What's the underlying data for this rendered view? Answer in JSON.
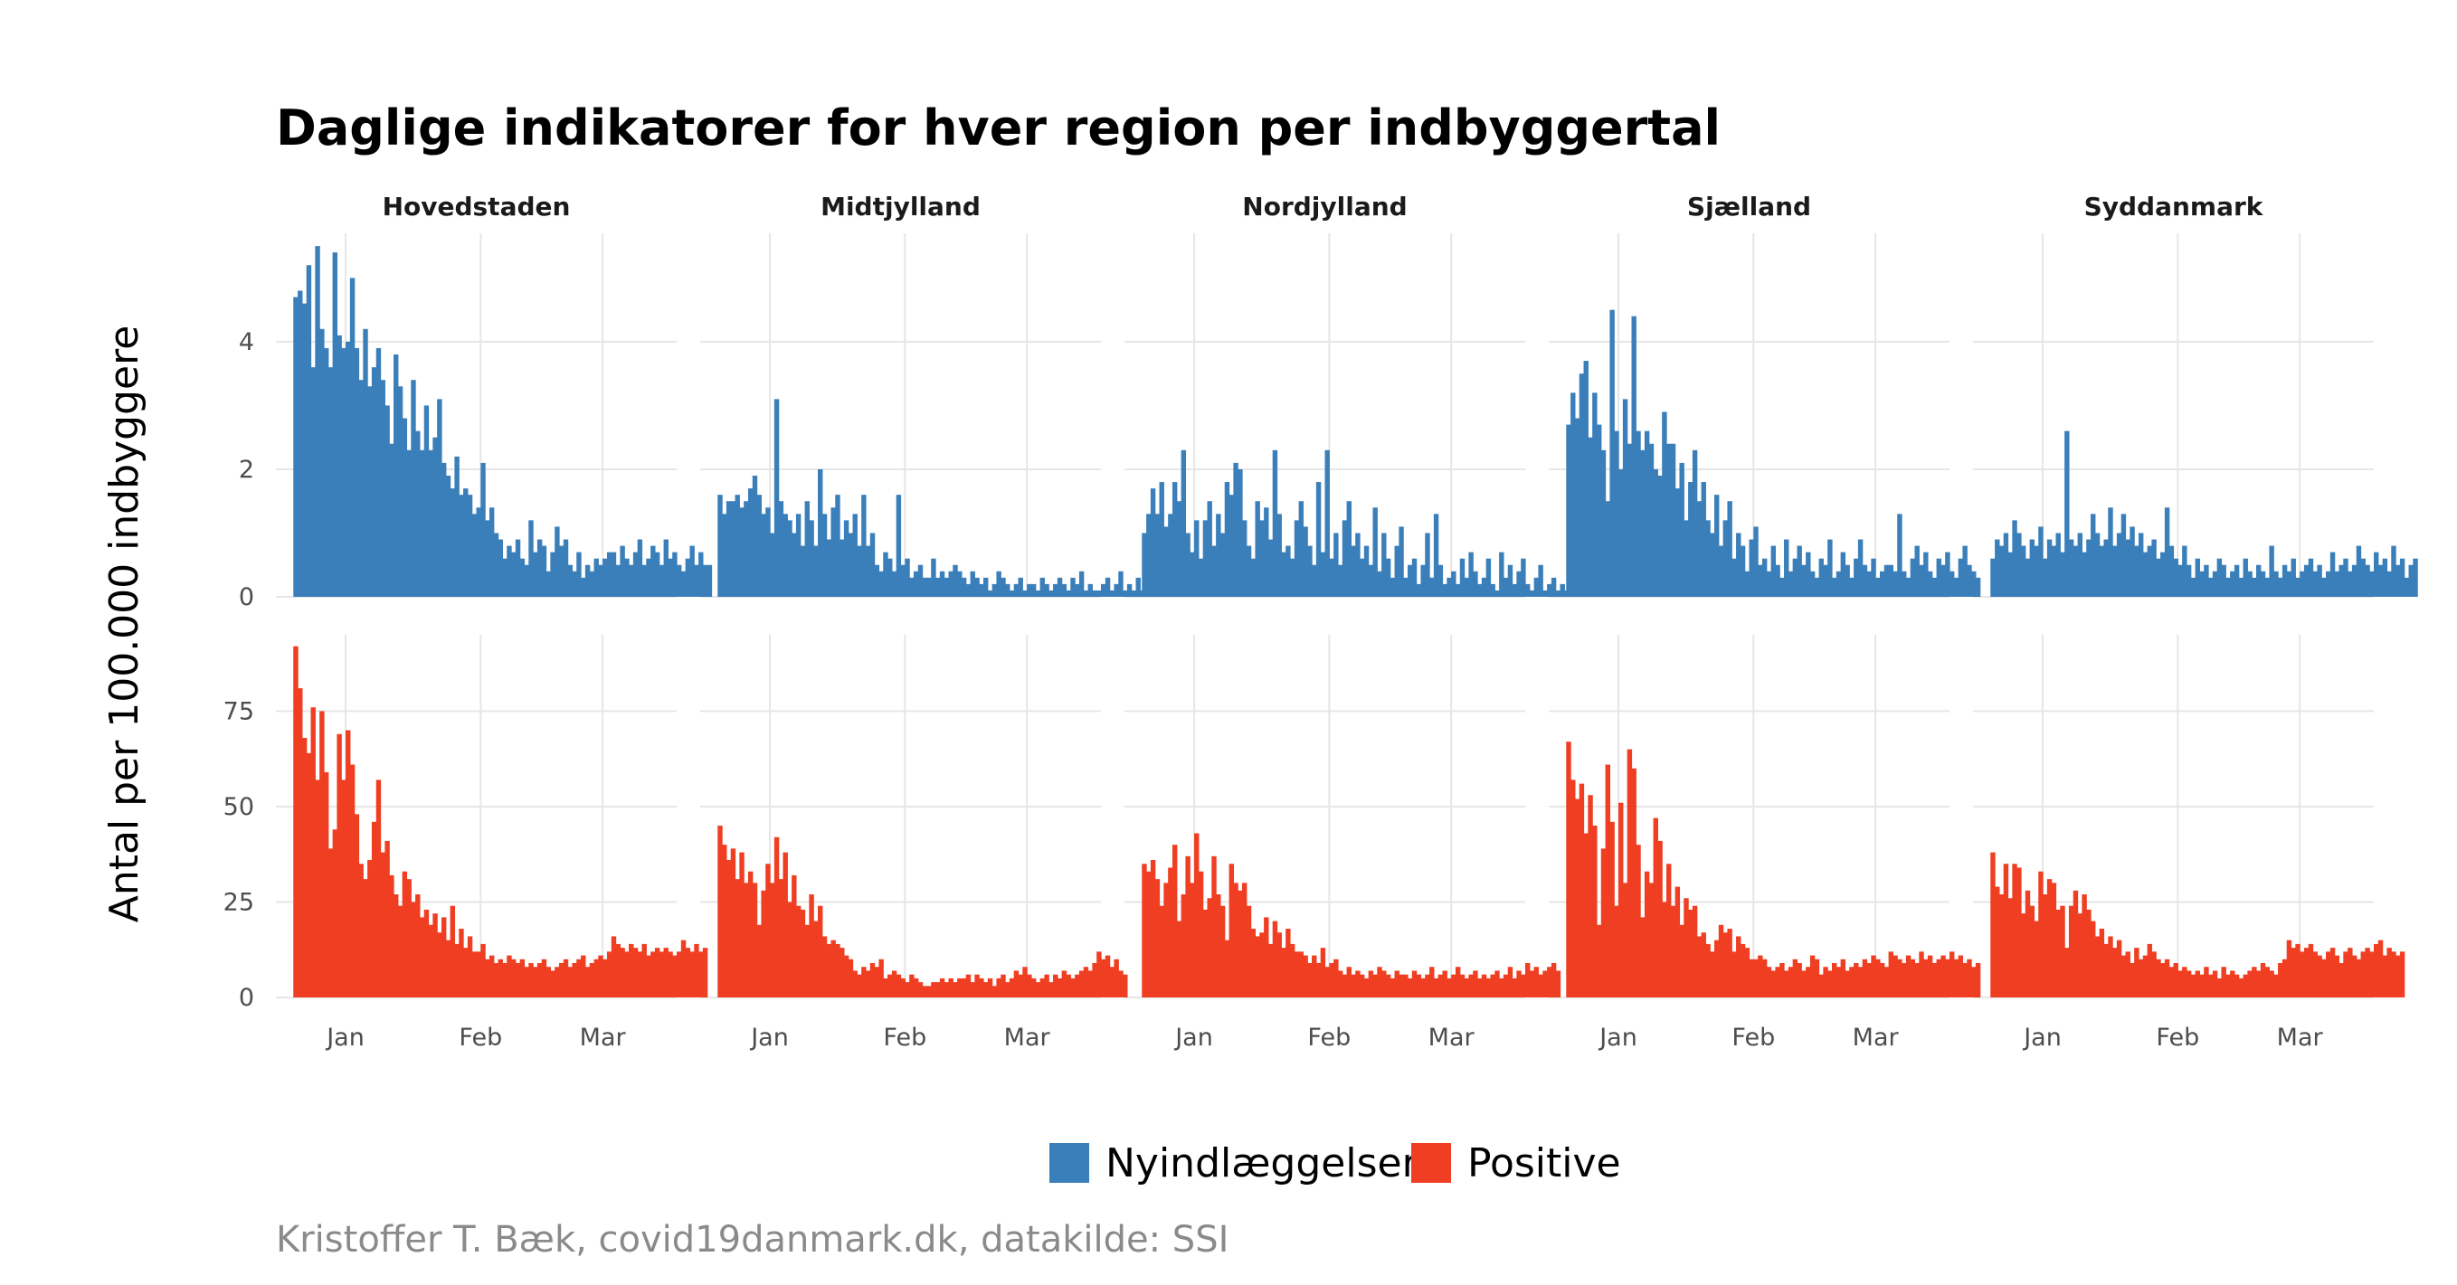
{
  "chart_data": {
    "type": "bar",
    "title": "Daglige indikatorer for hver region per indbyggertal",
    "ylabel": "Antal per 100.000 indbyggere",
    "caption": "Kristoffer T. Bæk, covid19danmark.dk, datakilde: SSI",
    "x_ticks": [
      "Jan",
      "Feb",
      "Mar"
    ],
    "x_range_dates": [
      "2020-12-16",
      "2021-03-18"
    ],
    "x_tick_dates": [
      "2021-01-01",
      "2021-02-01",
      "2021-03-01"
    ],
    "grid": true,
    "legend_position": "bottom",
    "panels": [
      "Hovedstaden",
      "Midtjylland",
      "Nordjylland",
      "Sjælland",
      "Syddanmark"
    ],
    "series": [
      {
        "name": "Nyindlæggelser",
        "color": "#3a7fba",
        "ylim": [
          0,
          5.7
        ],
        "y_ticks": [
          0,
          2,
          4
        ],
        "start_date": "2020-12-20",
        "values_by_region": {
          "Hovedstaden": [
            4.7,
            4.8,
            4.6,
            5.2,
            3.6,
            5.5,
            4.2,
            3.9,
            3.6,
            5.4,
            4.1,
            3.9,
            4.0,
            5.0,
            3.9,
            3.4,
            4.2,
            3.3,
            3.6,
            3.9,
            3.4,
            3.0,
            2.4,
            3.8,
            3.3,
            2.8,
            2.3,
            3.4,
            2.6,
            2.3,
            3.0,
            2.3,
            2.5,
            3.1,
            2.1,
            1.9,
            1.7,
            2.2,
            1.6,
            1.7,
            1.6,
            1.3,
            1.4,
            2.1,
            1.2,
            1.4,
            1.0,
            0.9,
            0.6,
            0.8,
            0.7,
            0.9,
            0.6,
            0.5,
            1.2,
            0.7,
            0.9,
            0.8,
            0.4,
            0.7,
            1.1,
            0.8,
            0.9,
            0.5,
            0.4,
            0.7,
            0.3,
            0.5,
            0.4,
            0.6,
            0.5,
            0.6,
            0.7,
            0.7,
            0.5,
            0.8,
            0.6,
            0.5,
            0.7,
            0.9,
            0.5,
            0.6,
            0.8,
            0.7,
            0.5,
            0.9,
            0.6,
            0.7,
            0.5,
            0.4,
            0.6,
            0.8,
            0.5,
            0.7,
            0.5,
            0.5
          ],
          "Midtjylland": [
            1.6,
            1.3,
            1.5,
            1.5,
            1.6,
            1.4,
            1.5,
            1.7,
            1.9,
            1.6,
            1.3,
            1.4,
            1.0,
            3.1,
            1.5,
            1.3,
            1.2,
            1.0,
            1.3,
            0.8,
            1.5,
            1.2,
            0.8,
            2.0,
            1.3,
            0.9,
            1.4,
            1.6,
            0.9,
            1.2,
            1.0,
            1.3,
            0.8,
            1.6,
            0.8,
            1.0,
            0.5,
            0.4,
            0.7,
            0.6,
            0.4,
            1.6,
            0.5,
            0.6,
            0.3,
            0.4,
            0.5,
            0.3,
            0.3,
            0.6,
            0.3,
            0.4,
            0.3,
            0.4,
            0.5,
            0.4,
            0.3,
            0.2,
            0.4,
            0.3,
            0.2,
            0.3,
            0.1,
            0.2,
            0.4,
            0.3,
            0.2,
            0.1,
            0.2,
            0.3,
            0.1,
            0.2,
            0.2,
            0.1,
            0.3,
            0.2,
            0.1,
            0.2,
            0.3,
            0.2,
            0.1,
            0.3,
            0.2,
            0.4,
            0.1,
            0.2,
            0.1,
            0.1,
            0.2,
            0.3,
            0.1,
            0.2,
            0.4,
            0.1,
            0.2,
            0.1,
            0.3,
            0.1,
            0.2
          ],
          "Nordjylland": [
            1.0,
            1.3,
            1.7,
            1.3,
            1.8,
            1.1,
            1.3,
            1.8,
            1.5,
            2.3,
            1.0,
            0.7,
            1.2,
            0.6,
            1.2,
            1.5,
            0.8,
            1.3,
            1.0,
            1.8,
            1.6,
            2.1,
            2.0,
            1.2,
            0.8,
            0.6,
            1.5,
            1.2,
            1.4,
            0.9,
            2.3,
            1.3,
            0.7,
            0.8,
            0.6,
            1.2,
            1.5,
            1.1,
            0.8,
            0.5,
            1.8,
            0.7,
            2.3,
            0.6,
            1.0,
            0.5,
            1.2,
            1.5,
            0.8,
            1.0,
            0.6,
            0.8,
            0.5,
            1.4,
            0.4,
            1.0,
            0.6,
            0.3,
            0.8,
            1.1,
            0.3,
            0.5,
            0.6,
            0.2,
            0.5,
            1.0,
            0.3,
            1.3,
            0.5,
            0.2,
            0.3,
            0.4,
            0.2,
            0.6,
            0.3,
            0.7,
            0.4,
            0.2,
            0.3,
            0.6,
            0.2,
            0.1,
            0.7,
            0.3,
            0.5,
            0.2,
            0.4,
            0.6,
            0.2,
            0.1,
            0.3,
            0.5,
            0.1,
            0.2,
            0.3,
            0.1,
            0.2,
            0.1,
            0.3
          ],
          "Sjælland": [
            2.7,
            3.2,
            2.8,
            3.5,
            3.7,
            2.5,
            3.2,
            2.7,
            2.3,
            1.5,
            4.5,
            2.6,
            2.0,
            3.1,
            2.4,
            4.4,
            2.6,
            2.3,
            2.6,
            2.4,
            2.0,
            1.9,
            2.9,
            2.4,
            2.4,
            1.7,
            2.1,
            1.2,
            1.8,
            2.3,
            1.5,
            1.8,
            1.2,
            1.0,
            1.6,
            0.8,
            1.2,
            1.5,
            0.6,
            1.0,
            0.8,
            0.4,
            0.9,
            1.1,
            0.5,
            0.6,
            0.4,
            0.8,
            0.5,
            0.3,
            0.9,
            0.4,
            0.6,
            0.8,
            0.5,
            0.7,
            0.4,
            0.3,
            0.6,
            0.5,
            0.9,
            0.3,
            0.4,
            0.7,
            0.5,
            0.3,
            0.6,
            0.9,
            0.5,
            0.4,
            0.6,
            0.3,
            0.4,
            0.5,
            0.5,
            0.4,
            1.3,
            0.4,
            0.3,
            0.6,
            0.8,
            0.5,
            0.7,
            0.4,
            0.3,
            0.6,
            0.5,
            0.7,
            0.4,
            0.3,
            0.6,
            0.8,
            0.5,
            0.4,
            0.3
          ],
          "Syddanmark": [
            0.6,
            0.9,
            0.8,
            1.0,
            0.7,
            1.2,
            1.0,
            0.8,
            0.6,
            0.9,
            0.8,
            1.1,
            0.6,
            0.9,
            0.8,
            1.0,
            0.7,
            2.6,
            0.9,
            0.8,
            1.0,
            0.7,
            0.9,
            1.3,
            1.0,
            0.8,
            0.9,
            1.4,
            0.8,
            1.0,
            1.3,
            0.9,
            1.1,
            0.8,
            1.0,
            0.7,
            0.8,
            0.9,
            0.6,
            0.7,
            1.4,
            0.8,
            0.6,
            0.5,
            0.8,
            0.5,
            0.3,
            0.6,
            0.4,
            0.5,
            0.3,
            0.4,
            0.6,
            0.5,
            0.3,
            0.4,
            0.5,
            0.3,
            0.6,
            0.4,
            0.3,
            0.5,
            0.4,
            0.3,
            0.8,
            0.4,
            0.3,
            0.5,
            0.4,
            0.6,
            0.3,
            0.4,
            0.5,
            0.6,
            0.4,
            0.5,
            0.3,
            0.4,
            0.7,
            0.4,
            0.5,
            0.6,
            0.4,
            0.5,
            0.8,
            0.6,
            0.5,
            0.4,
            0.7,
            0.5,
            0.6,
            0.4,
            0.8,
            0.5,
            0.6,
            0.3,
            0.5,
            0.6
          ]
        }
      },
      {
        "name": "Positive",
        "color": "#ef3e22",
        "ylim": [
          0,
          95
        ],
        "y_ticks": [
          0,
          25,
          50,
          75
        ],
        "start_date": "2020-12-20",
        "values_by_region": {
          "Hovedstaden": [
            92,
            81,
            68,
            64,
            76,
            57,
            75,
            59,
            39,
            44,
            69,
            57,
            70,
            61,
            48,
            35,
            31,
            36,
            46,
            57,
            38,
            41,
            32,
            27,
            24,
            33,
            31,
            25,
            27,
            21,
            23,
            19,
            22,
            17,
            21,
            15,
            24,
            14,
            18,
            13,
            16,
            12,
            12,
            14,
            10,
            11,
            9,
            10,
            9,
            11,
            10,
            9,
            10,
            8,
            9,
            8,
            9,
            10,
            8,
            7,
            8,
            9,
            10,
            8,
            9,
            10,
            11,
            8,
            9,
            10,
            11,
            10,
            12,
            16,
            14,
            13,
            12,
            14,
            13,
            12,
            14,
            11,
            12,
            13,
            12,
            13,
            12,
            11,
            12,
            15,
            13,
            12,
            14,
            12,
            13
          ],
          "Midtjylland": [
            45,
            40,
            36,
            39,
            31,
            38,
            30,
            33,
            30,
            19,
            28,
            35,
            30,
            42,
            31,
            38,
            25,
            32,
            24,
            23,
            19,
            27,
            20,
            24,
            16,
            14,
            15,
            14,
            13,
            11,
            10,
            7,
            6,
            8,
            7,
            9,
            8,
            10,
            5,
            6,
            7,
            6,
            5,
            4,
            6,
            5,
            4,
            3,
            3,
            4,
            4,
            5,
            4,
            5,
            4,
            5,
            5,
            6,
            4,
            6,
            5,
            4,
            5,
            3,
            5,
            6,
            4,
            5,
            7,
            6,
            8,
            6,
            5,
            4,
            5,
            6,
            4,
            6,
            5,
            7,
            6,
            5,
            6,
            7,
            8,
            7,
            9,
            12,
            10,
            11,
            8,
            10,
            7,
            6
          ],
          "Nordjylland": [
            35,
            33,
            36,
            31,
            24,
            30,
            34,
            40,
            20,
            27,
            37,
            30,
            43,
            33,
            23,
            26,
            37,
            27,
            24,
            15,
            35,
            30,
            28,
            30,
            24,
            18,
            16,
            17,
            21,
            14,
            20,
            17,
            13,
            18,
            14,
            12,
            12,
            11,
            9,
            11,
            9,
            13,
            8,
            9,
            10,
            7,
            6,
            8,
            6,
            7,
            6,
            5,
            7,
            6,
            8,
            7,
            6,
            5,
            7,
            6,
            6,
            5,
            7,
            6,
            5,
            6,
            8,
            5,
            6,
            7,
            5,
            6,
            8,
            6,
            5,
            6,
            7,
            5,
            6,
            5,
            6,
            7,
            5,
            6,
            8,
            5,
            7,
            6,
            9,
            7,
            8,
            6,
            7,
            8,
            9,
            7
          ],
          "Sjælland": [
            67,
            57,
            52,
            56,
            43,
            53,
            45,
            19,
            39,
            61,
            46,
            24,
            51,
            30,
            65,
            60,
            40,
            21,
            33,
            30,
            47,
            41,
            25,
            35,
            24,
            29,
            19,
            26,
            23,
            24,
            16,
            17,
            14,
            12,
            15,
            19,
            17,
            18,
            12,
            16,
            14,
            13,
            10,
            10,
            11,
            10,
            8,
            7,
            8,
            9,
            7,
            8,
            10,
            9,
            7,
            8,
            11,
            10,
            6,
            8,
            7,
            9,
            8,
            10,
            7,
            8,
            9,
            8,
            10,
            9,
            11,
            10,
            9,
            8,
            12,
            11,
            10,
            9,
            11,
            10,
            9,
            12,
            10,
            11,
            9,
            10,
            11,
            10,
            12,
            10,
            11,
            9,
            10,
            8,
            9
          ],
          "Syddanmark": [
            38,
            29,
            27,
            35,
            26,
            35,
            34,
            22,
            28,
            24,
            20,
            33,
            27,
            31,
            30,
            23,
            24,
            13,
            24,
            28,
            22,
            27,
            23,
            20,
            16,
            18,
            14,
            16,
            13,
            15,
            11,
            12,
            9,
            13,
            10,
            11,
            14,
            12,
            10,
            9,
            10,
            8,
            9,
            7,
            8,
            7,
            6,
            7,
            6,
            8,
            6,
            7,
            5,
            8,
            6,
            7,
            6,
            5,
            6,
            7,
            8,
            7,
            9,
            8,
            7,
            6,
            9,
            10,
            15,
            13,
            14,
            12,
            13,
            14,
            12,
            11,
            10,
            12,
            13,
            11,
            9,
            12,
            13,
            11,
            10,
            12,
            13,
            12,
            14,
            15,
            11,
            13,
            12,
            11,
            12
          ]
        }
      }
    ]
  }
}
